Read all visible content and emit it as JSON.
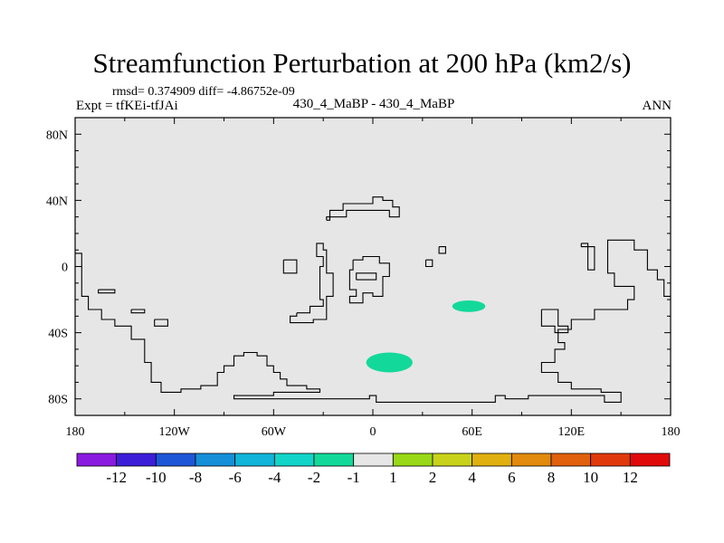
{
  "chart_data": {
    "type": "heatmap",
    "title": "Streamfunction Perturbation at 200 hPa (km2/s)",
    "stats": "rmsd= 0.374909 diff= -4.86752e-09",
    "left_label": "Expt = tfKEi-tfJAi",
    "center_label": "430_4_MaBP - 430_4_MaBP",
    "right_label": "ANN",
    "xlim": [
      -180,
      180
    ],
    "ylim": [
      -90,
      90
    ],
    "x_ticks": [
      {
        "value": -180,
        "label": "180"
      },
      {
        "value": -120,
        "label": "120W"
      },
      {
        "value": -60,
        "label": "60W"
      },
      {
        "value": 0,
        "label": "0"
      },
      {
        "value": 60,
        "label": "60E"
      },
      {
        "value": 120,
        "label": "120E"
      },
      {
        "value": 180,
        "label": "180"
      }
    ],
    "y_ticks": [
      {
        "value": 80,
        "label": "80N"
      },
      {
        "value": 40,
        "label": "40N"
      },
      {
        "value": 0,
        "label": "0"
      },
      {
        "value": -40,
        "label": "40S"
      },
      {
        "value": -80,
        "label": "80S"
      }
    ],
    "background_color": "#e6e6e6",
    "colorbar": {
      "colors": [
        "#8b1ae0",
        "#3d1ed8",
        "#1e56d8",
        "#148fd8",
        "#10b4d8",
        "#12d4c8",
        "#12d99a",
        "#e6e6e6",
        "#98d816",
        "#c9d21a",
        "#e0b010",
        "#e28a0c",
        "#e0600c",
        "#e03a0c",
        "#e00a0a"
      ],
      "labels": [
        "-12",
        "-10",
        "-8",
        "-6",
        "-4",
        "-2",
        "-1",
        "1",
        "2",
        "4",
        "6",
        "8",
        "10",
        "12"
      ]
    },
    "features": [
      {
        "type": "anomaly",
        "value_range": "-2 to -1",
        "color": "#12d99a",
        "center": [
          10,
          -58
        ],
        "radii": [
          14,
          6
        ]
      },
      {
        "type": "anomaly",
        "value_range": "-2 to -1",
        "color": "#12d99a",
        "center": [
          58,
          -24
        ],
        "radii": [
          10,
          3.5
        ]
      }
    ],
    "coastlines": [
      [
        [
          -180,
          8
        ],
        [
          -176,
          8
        ],
        [
          -176,
          -18
        ],
        [
          -172,
          -18
        ],
        [
          -172,
          -26
        ],
        [
          -164,
          -26
        ],
        [
          -164,
          -32
        ],
        [
          -156,
          -32
        ],
        [
          -156,
          -36
        ],
        [
          -146,
          -36
        ],
        [
          -146,
          -44
        ],
        [
          -138,
          -44
        ],
        [
          -138,
          -58
        ],
        [
          -134,
          -58
        ],
        [
          -134,
          -70
        ],
        [
          -128,
          -70
        ],
        [
          -128,
          -76
        ],
        [
          -116,
          -76
        ],
        [
          -116,
          -74
        ],
        [
          -104,
          -74
        ],
        [
          -104,
          -72
        ],
        [
          -94,
          -72
        ],
        [
          -94,
          -64
        ],
        [
          -90,
          -64
        ],
        [
          -90,
          -60
        ],
        [
          -84,
          -60
        ],
        [
          -84,
          -54
        ],
        [
          -78,
          -54
        ],
        [
          -78,
          -52
        ],
        [
          -70,
          -52
        ],
        [
          -70,
          -54
        ],
        [
          -64,
          -54
        ],
        [
          -64,
          -60
        ],
        [
          -60,
          -60
        ],
        [
          -60,
          -64
        ],
        [
          -56,
          -64
        ],
        [
          -56,
          -68
        ],
        [
          -52,
          -68
        ],
        [
          -52,
          -72
        ],
        [
          -40,
          -72
        ],
        [
          -40,
          -74
        ],
        [
          -32,
          -74
        ],
        [
          -32,
          -76
        ],
        [
          -60,
          -76
        ],
        [
          -60,
          -78
        ],
        [
          -84,
          -78
        ],
        [
          -84,
          -80
        ],
        [
          -2,
          -80
        ],
        [
          -2,
          -78
        ],
        [
          2,
          -78
        ],
        [
          2,
          -82
        ],
        [
          74,
          -82
        ],
        [
          74,
          -78
        ],
        [
          80,
          -78
        ],
        [
          80,
          -80
        ],
        [
          94,
          -80
        ],
        [
          94,
          -78
        ],
        [
          140,
          -78
        ],
        [
          140,
          -82
        ],
        [
          150,
          -82
        ],
        [
          150,
          -76
        ],
        [
          138,
          -76
        ],
        [
          138,
          -74
        ],
        [
          120,
          -74
        ],
        [
          120,
          -70
        ],
        [
          112,
          -70
        ],
        [
          112,
          -64
        ],
        [
          102,
          -64
        ],
        [
          102,
          -58
        ],
        [
          110,
          -58
        ],
        [
          110,
          -50
        ],
        [
          116,
          -50
        ],
        [
          116,
          -46
        ],
        [
          112,
          -46
        ],
        [
          112,
          -38
        ],
        [
          120,
          -38
        ],
        [
          120,
          -32
        ],
        [
          134,
          -32
        ],
        [
          134,
          -26
        ],
        [
          154,
          -26
        ],
        [
          154,
          -20
        ],
        [
          158,
          -20
        ],
        [
          158,
          -12
        ],
        [
          146,
          -12
        ],
        [
          146,
          -4
        ],
        [
          142,
          -4
        ],
        [
          142,
          16
        ],
        [
          158,
          16
        ],
        [
          158,
          10
        ],
        [
          166,
          10
        ],
        [
          166,
          -2
        ],
        [
          172,
          -2
        ],
        [
          172,
          -8
        ],
        [
          176,
          -8
        ],
        [
          176,
          -18
        ],
        [
          180,
          -18
        ]
      ],
      [
        [
          102,
          -26
        ],
        [
          112,
          -26
        ],
        [
          112,
          -36
        ],
        [
          118,
          -36
        ],
        [
          118,
          -40
        ],
        [
          110,
          -40
        ],
        [
          110,
          -36
        ],
        [
          102,
          -36
        ],
        [
          102,
          -26
        ]
      ],
      [
        [
          126,
          14
        ],
        [
          130,
          14
        ],
        [
          130,
          12
        ],
        [
          134,
          12
        ],
        [
          134,
          -2
        ],
        [
          130,
          -2
        ],
        [
          130,
          12
        ],
        [
          126,
          12
        ],
        [
          126,
          14
        ]
      ],
      [
        [
          -166,
          -14
        ],
        [
          -156,
          -14
        ],
        [
          -156,
          -16
        ],
        [
          -166,
          -16
        ],
        [
          -166,
          -14
        ]
      ],
      [
        [
          -146,
          -26
        ],
        [
          -138,
          -26
        ],
        [
          -138,
          -28
        ],
        [
          -146,
          -28
        ],
        [
          -146,
          -26
        ]
      ],
      [
        [
          -132,
          -32
        ],
        [
          -124,
          -32
        ],
        [
          -124,
          -36
        ],
        [
          -132,
          -36
        ],
        [
          -132,
          -32
        ]
      ],
      [
        [
          -46,
          -28
        ],
        [
          -38,
          -28
        ],
        [
          -38,
          -24
        ],
        [
          -30,
          -24
        ],
        [
          -30,
          -20
        ],
        [
          -32,
          -20
        ],
        [
          -32,
          0
        ],
        [
          -30,
          0
        ],
        [
          -30,
          6
        ],
        [
          -34,
          6
        ],
        [
          -34,
          14
        ],
        [
          -30,
          14
        ],
        [
          -30,
          10
        ],
        [
          -28,
          10
        ],
        [
          -28,
          -4
        ],
        [
          -24,
          -4
        ],
        [
          -24,
          -18
        ],
        [
          -28,
          -18
        ],
        [
          -28,
          -32
        ],
        [
          -36,
          -32
        ],
        [
          -36,
          -34
        ],
        [
          -50,
          -34
        ],
        [
          -50,
          -30
        ],
        [
          -46,
          -30
        ],
        [
          -46,
          -28
        ]
      ],
      [
        [
          -54,
          4
        ],
        [
          -46,
          4
        ],
        [
          -46,
          -4
        ],
        [
          -54,
          -4
        ],
        [
          -54,
          4
        ]
      ],
      [
        [
          -28,
          28
        ],
        [
          -26,
          28
        ],
        [
          -26,
          34
        ],
        [
          -18,
          34
        ],
        [
          -18,
          38
        ],
        [
          0,
          38
        ],
        [
          0,
          42
        ],
        [
          6,
          42
        ],
        [
          6,
          40
        ],
        [
          12,
          40
        ],
        [
          12,
          36
        ],
        [
          16,
          36
        ],
        [
          16,
          30
        ],
        [
          10,
          30
        ],
        [
          10,
          34
        ],
        [
          -16,
          34
        ],
        [
          -16,
          30
        ],
        [
          -28,
          30
        ],
        [
          -28,
          28
        ]
      ],
      [
        [
          -12,
          4
        ],
        [
          -6,
          4
        ],
        [
          -6,
          6
        ],
        [
          4,
          6
        ],
        [
          4,
          2
        ],
        [
          10,
          2
        ],
        [
          10,
          -6
        ],
        [
          6,
          -6
        ],
        [
          6,
          -18
        ],
        [
          0,
          -18
        ],
        [
          0,
          -16
        ],
        [
          -6,
          -16
        ],
        [
          -6,
          -22
        ],
        [
          -14,
          -22
        ],
        [
          -14,
          -18
        ],
        [
          -10,
          -18
        ],
        [
          -10,
          -14
        ],
        [
          -14,
          -14
        ],
        [
          -14,
          -2
        ],
        [
          -12,
          -2
        ],
        [
          -12,
          4
        ]
      ],
      [
        [
          -10,
          -8
        ],
        [
          2,
          -8
        ],
        [
          2,
          -4
        ],
        [
          -10,
          -4
        ],
        [
          -10,
          -8
        ]
      ],
      [
        [
          40,
          12
        ],
        [
          44,
          12
        ],
        [
          44,
          8
        ],
        [
          40,
          8
        ],
        [
          40,
          12
        ]
      ],
      [
        [
          32,
          4
        ],
        [
          36,
          4
        ],
        [
          36,
          0
        ],
        [
          32,
          0
        ],
        [
          32,
          4
        ]
      ]
    ]
  }
}
